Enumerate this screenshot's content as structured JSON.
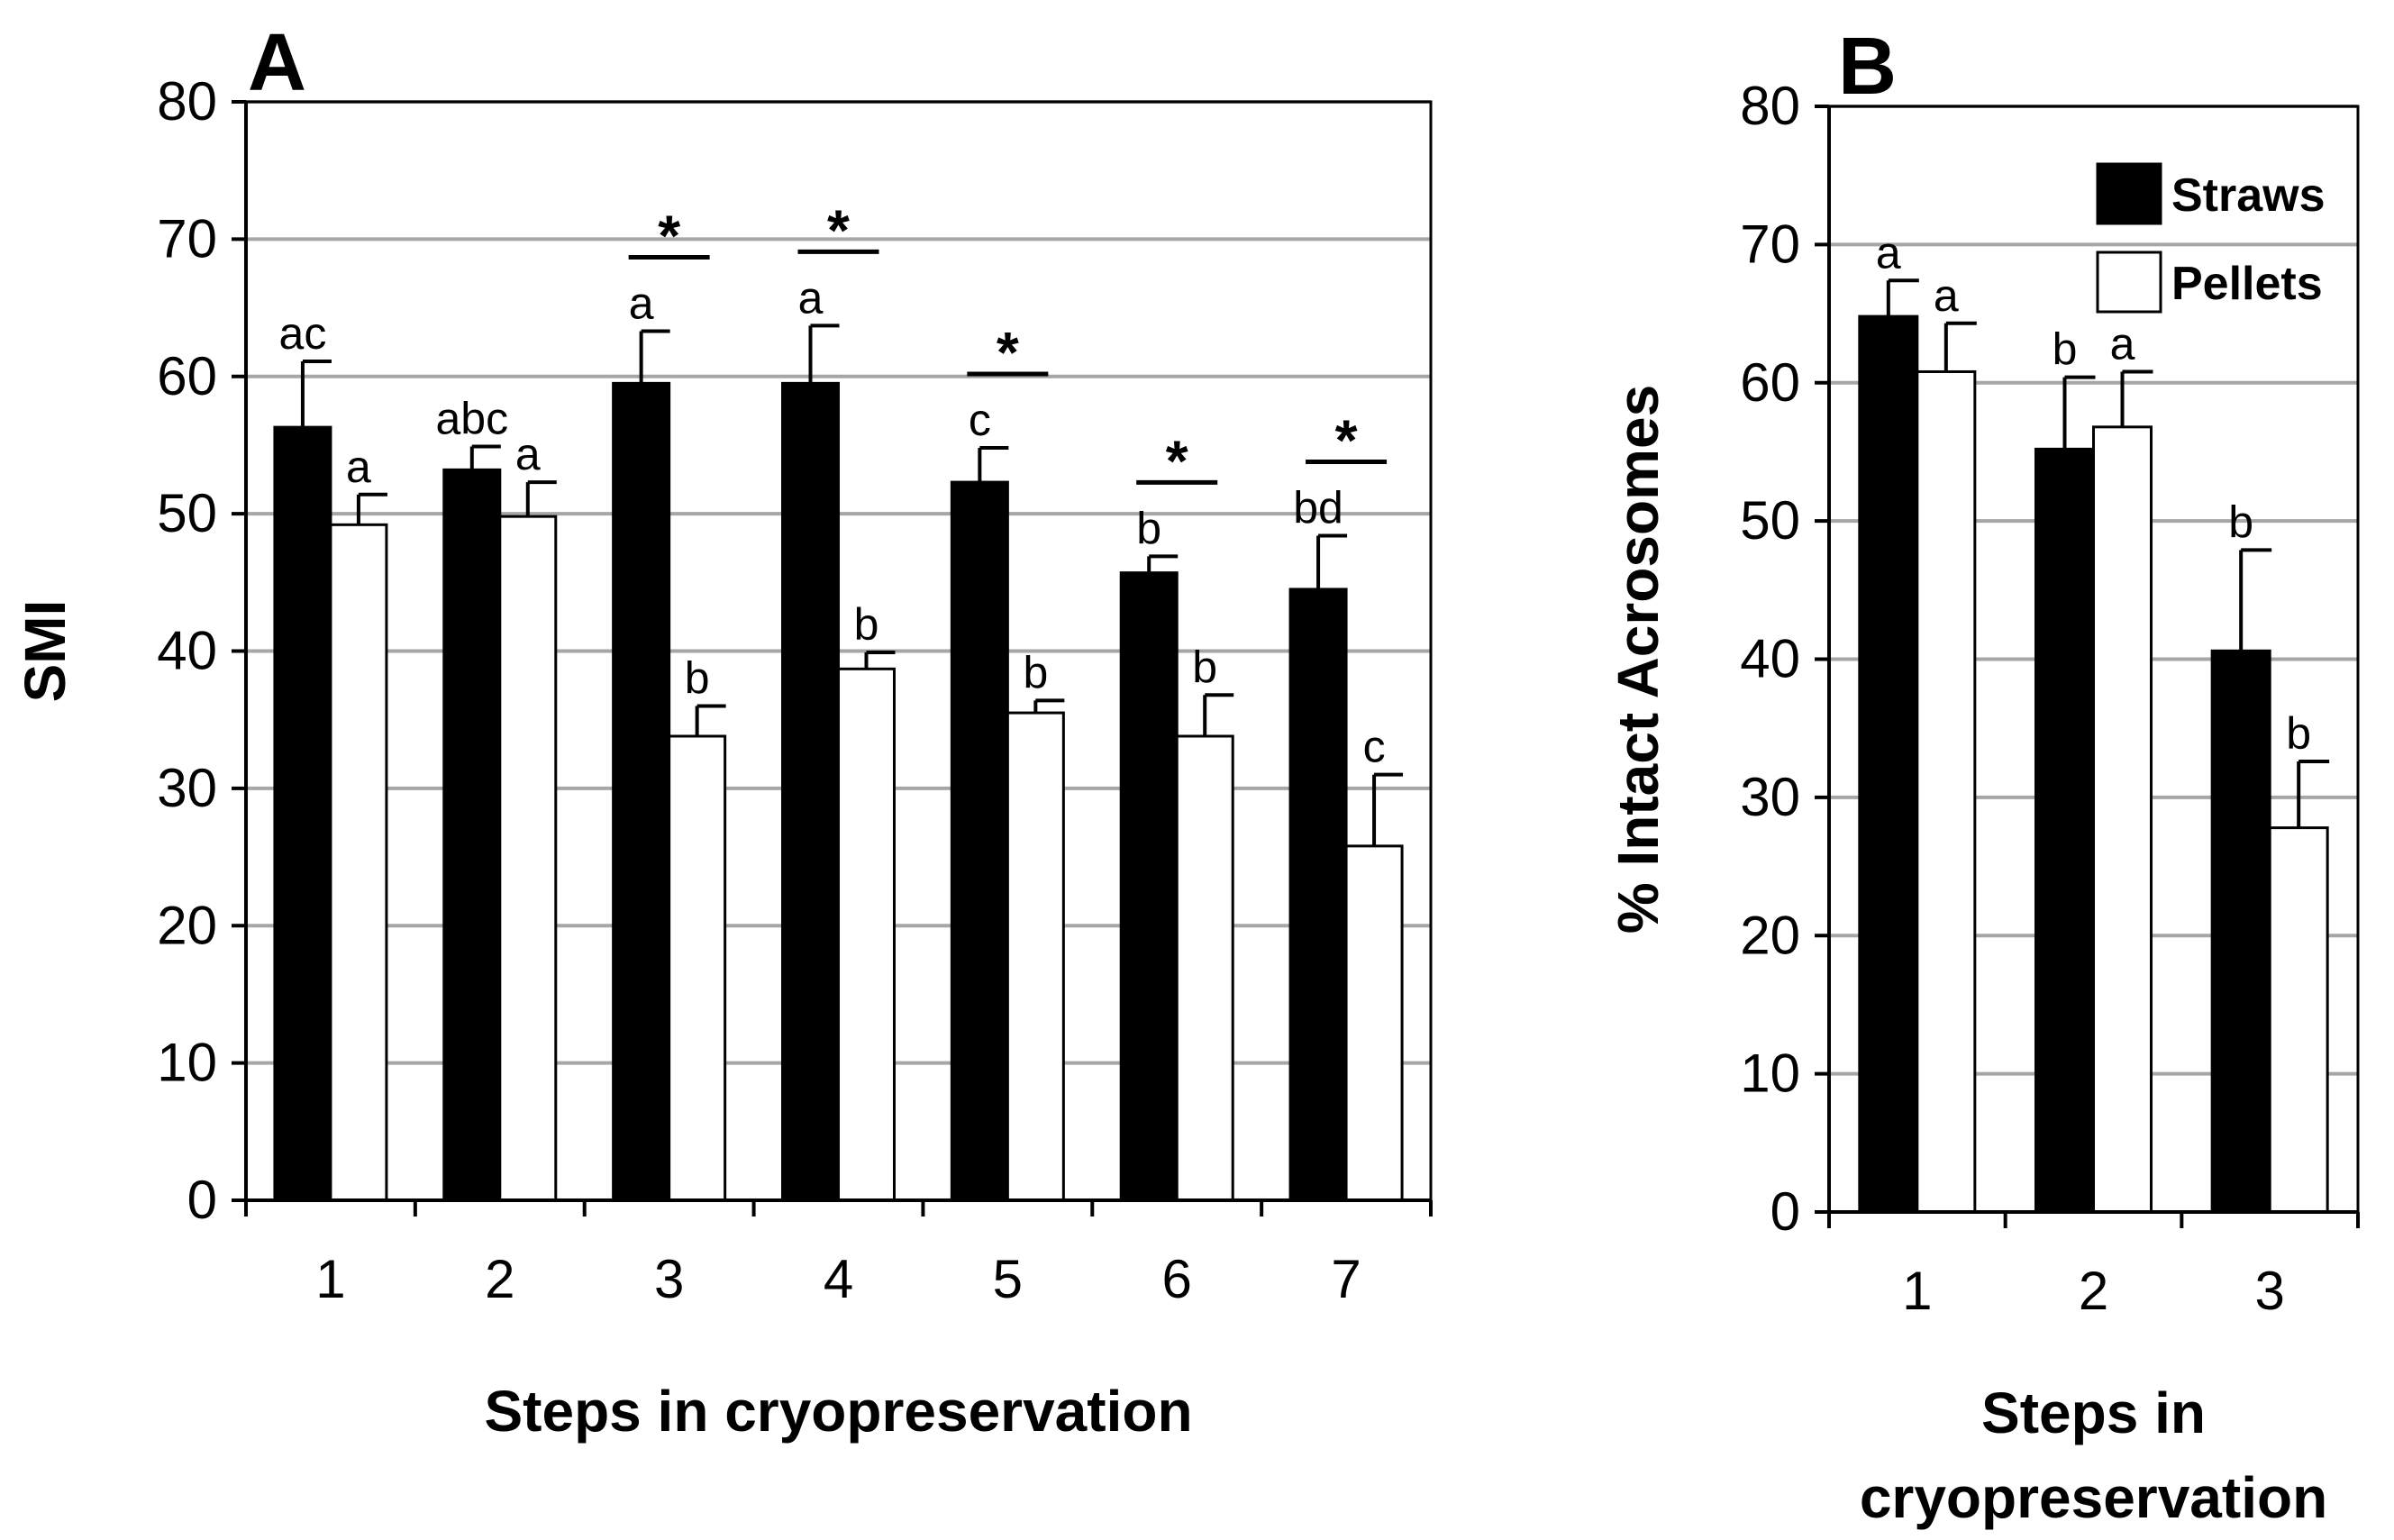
{
  "chart_data": [
    {
      "type": "bar",
      "panel_label": "A",
      "xlabel": "Steps in cryopreservation",
      "ylabel": "SMI",
      "ylim": [
        0,
        80
      ],
      "yticks": [
        "0",
        "10",
        "20",
        "30",
        "40",
        "50",
        "60",
        "70",
        "80"
      ],
      "categories": [
        "1",
        "2",
        "3",
        "4",
        "5",
        "6",
        "7"
      ],
      "grid": true,
      "series": [
        {
          "name": "Straws",
          "color": "#000000",
          "values": [
            56.3,
            53.2,
            59.5,
            59.5,
            52.3,
            45.7,
            44.5
          ],
          "errors": [
            4.8,
            1.7,
            3.8,
            4.2,
            2.5,
            1.2,
            3.9
          ],
          "letters": [
            "ac",
            "abc",
            "a",
            "a",
            "c",
            "b",
            "bd"
          ]
        },
        {
          "name": "Pellets",
          "color": "#ffffff",
          "values": [
            49.2,
            49.8,
            33.8,
            38.7,
            35.5,
            33.8,
            25.8
          ],
          "errors": [
            2.2,
            2.5,
            2.2,
            1.2,
            0.9,
            3.0,
            5.2
          ],
          "letters": [
            "a",
            "a",
            "b",
            "b",
            "b",
            "b",
            "c"
          ]
        }
      ],
      "significance": [
        "",
        "",
        "*",
        "*",
        "*",
        "*",
        "*"
      ]
    },
    {
      "type": "bar",
      "panel_label": "B",
      "xlabel_lines": [
        "Steps in",
        "cryopreservation"
      ],
      "ylabel": "% Intact Acrosomes",
      "ylim": [
        0,
        80
      ],
      "yticks": [
        "0",
        "10",
        "20",
        "30",
        "40",
        "50",
        "60",
        "70",
        "80"
      ],
      "categories": [
        "1",
        "2",
        "3"
      ],
      "grid": true,
      "legend_position": "top-right",
      "series": [
        {
          "name": "Straws",
          "color": "#000000",
          "values": [
            64.8,
            55.2,
            40.6
          ],
          "errors": [
            2.6,
            5.2,
            7.3
          ],
          "letters": [
            "a",
            "b",
            "b"
          ]
        },
        {
          "name": "Pellets",
          "color": "#ffffff",
          "values": [
            60.8,
            56.8,
            27.8
          ],
          "errors": [
            3.5,
            4.0,
            4.8
          ],
          "letters": [
            "a",
            "a",
            "b"
          ]
        }
      ]
    }
  ]
}
